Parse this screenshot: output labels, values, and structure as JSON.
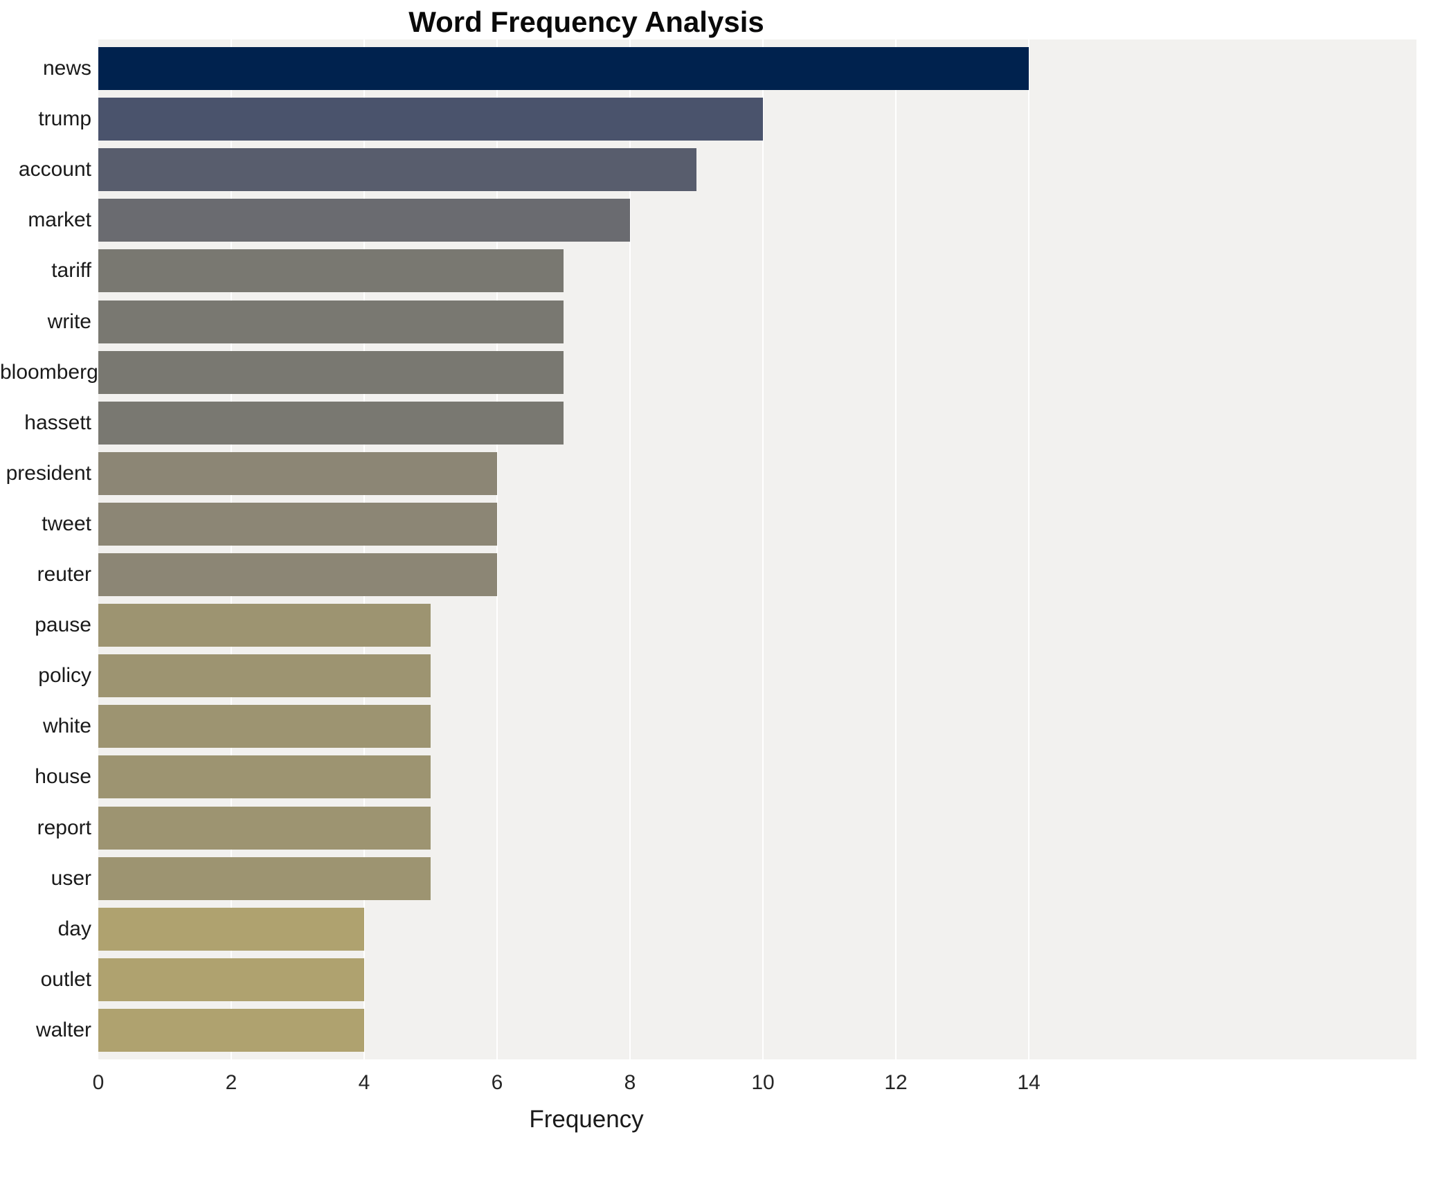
{
  "chart_data": {
    "type": "bar",
    "orientation": "horizontal",
    "title": "Word Frequency Analysis",
    "xlabel": "Frequency",
    "ylabel": "",
    "xlim": [
      0,
      19.8
    ],
    "xticks": [
      0,
      2,
      4,
      6,
      8,
      10,
      12,
      14
    ],
    "grid": true,
    "legend": false,
    "plot_background": "#f2f1ef",
    "gridline_color": "#ffffff",
    "categories": [
      "news",
      "trump",
      "account",
      "market",
      "tariff",
      "write",
      "bloomberg",
      "hassett",
      "president",
      "tweet",
      "reuter",
      "pause",
      "policy",
      "white",
      "house",
      "report",
      "user",
      "day",
      "outlet",
      "walter"
    ],
    "values": [
      14,
      10,
      9,
      8,
      7,
      7,
      7,
      7,
      6,
      6,
      6,
      5,
      5,
      5,
      5,
      5,
      5,
      4,
      4,
      4
    ],
    "bar_colors": [
      "#00224e",
      "#4a536c",
      "#585d6d",
      "#6a6b70",
      "#797871",
      "#797871",
      "#797871",
      "#797871",
      "#8c8675",
      "#8c8675",
      "#8c8675",
      "#9d9471",
      "#9d9471",
      "#9d9471",
      "#9d9471",
      "#9d9471",
      "#9d9471",
      "#afa26f",
      "#afa26f",
      "#afa26f"
    ]
  }
}
